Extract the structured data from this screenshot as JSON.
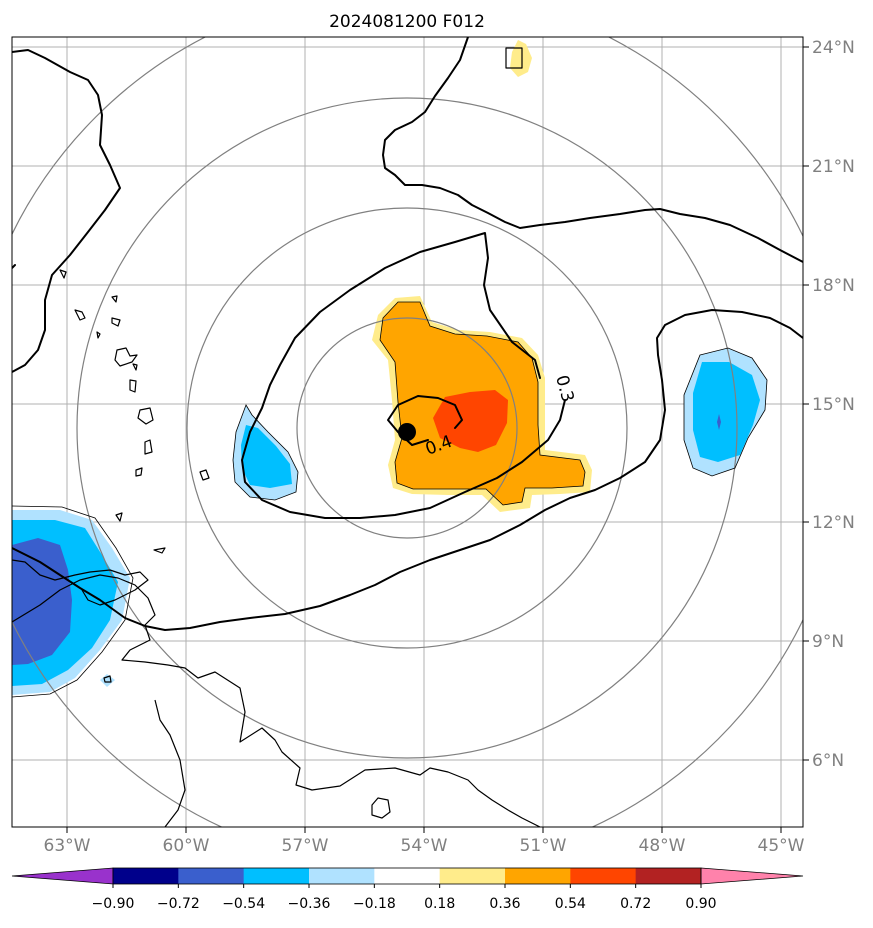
{
  "title": "2024081200 F012",
  "lon_ticks": [
    "63°W",
    "60°W",
    "57°W",
    "54°W",
    "51°W",
    "48°W",
    "45°W"
  ],
  "lat_ticks": [
    "24°N",
    "21°N",
    "18°N",
    "15°N",
    "12°N",
    "9°N",
    "6°N"
  ],
  "contour_labels": [
    "0.3",
    "0.4"
  ],
  "colorbar": {
    "ticks": [
      "−0.90",
      "−0.72",
      "−0.54",
      "−0.36",
      "−0.18",
      "0.18",
      "0.36",
      "0.54",
      "0.72",
      "0.90"
    ],
    "colors": [
      "#9932cc",
      "#00008b",
      "#3a5fcd",
      "#00bfff",
      "#b0e2ff",
      "#ffffff",
      "#ffec8b",
      "#ffa500",
      "#ff4500",
      "#b22222",
      "#ff82ab"
    ]
  },
  "colors": {
    "grid": "#b0b0b0",
    "range_ring": "#808080",
    "tick_label": "#808080",
    "contour": "#000000",
    "center_marker": "#000000"
  }
}
